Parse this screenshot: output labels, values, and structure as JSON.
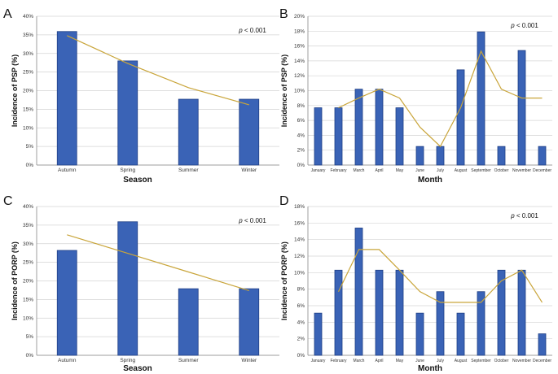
{
  "colors": {
    "bar": "#3a63b6",
    "bar_stroke": "#1f3f86",
    "trend": "#c9a53a",
    "grid": "#d4d4d4",
    "axis": "#888888"
  },
  "chart_data": [
    {
      "panel": "A",
      "type": "bar",
      "categories": [
        "Autumn",
        "Spring",
        "Summer",
        "Winter"
      ],
      "values": [
        35.9,
        28.0,
        17.7,
        17.7
      ],
      "trendline": {
        "type": "linear",
        "values": [
          34.8,
          27.3,
          20.8,
          16.2
        ]
      },
      "ylabel": "Incidence of PSP (%)",
      "xlabel": "Season",
      "ylim": [
        0,
        40
      ],
      "yticks": [
        0,
        5,
        10,
        15,
        20,
        25,
        30,
        35,
        40
      ],
      "ytick_suffix": "%",
      "annotation": "p < 0.001"
    },
    {
      "panel": "B",
      "type": "bar",
      "categories": [
        "January",
        "February",
        "March",
        "April",
        "May",
        "June",
        "July",
        "August",
        "September",
        "October",
        "November",
        "December"
      ],
      "values": [
        7.7,
        7.7,
        10.2,
        10.2,
        7.7,
        2.5,
        2.5,
        12.8,
        17.9,
        2.5,
        15.4,
        2.5
      ],
      "trendline": {
        "type": "moving-average",
        "start_index": 1,
        "values": [
          7.7,
          9.0,
          10.2,
          9.0,
          5.1,
          2.5,
          7.7,
          15.3,
          10.2,
          9.0,
          9.0
        ]
      },
      "ylabel": "Incidence of PSP (%)",
      "xlabel": "Month",
      "ylim": [
        0,
        20
      ],
      "yticks": [
        0,
        2,
        4,
        6,
        8,
        10,
        12,
        14,
        16,
        18,
        20
      ],
      "ytick_suffix": "%",
      "annotation": "p < 0.001"
    },
    {
      "panel": "C",
      "type": "bar",
      "categories": [
        "Autumn",
        "Spring",
        "Summer",
        "Winter"
      ],
      "values": [
        28.2,
        35.9,
        17.9,
        17.9
      ],
      "trendline": {
        "type": "linear",
        "values": [
          32.4,
          27.4,
          22.4,
          17.4
        ]
      },
      "ylabel": "Incidence of PORP (%)",
      "xlabel": "Season",
      "ylim": [
        0,
        40
      ],
      "yticks": [
        0,
        5,
        10,
        15,
        20,
        25,
        30,
        35,
        40
      ],
      "ytick_suffix": "%",
      "annotation": "p < 0.001"
    },
    {
      "panel": "D",
      "type": "bar",
      "categories": [
        "January",
        "February",
        "March",
        "April",
        "May",
        "June",
        "July",
        "August",
        "September",
        "October",
        "November",
        "December"
      ],
      "values": [
        5.1,
        10.3,
        15.4,
        10.3,
        10.3,
        5.1,
        7.7,
        5.1,
        7.7,
        10.3,
        10.3,
        2.6
      ],
      "trendline": {
        "type": "moving-average",
        "start_index": 1,
        "values": [
          7.7,
          12.8,
          12.8,
          10.3,
          7.7,
          6.4,
          6.4,
          6.4,
          9.0,
          10.3,
          6.4
        ]
      },
      "ylabel": "Incidence of PORP (%)",
      "xlabel": "Month",
      "ylim": [
        0,
        18
      ],
      "yticks": [
        0,
        2,
        4,
        6,
        8,
        10,
        12,
        14,
        16,
        18
      ],
      "ytick_suffix": "%",
      "annotation": "p < 0.001"
    }
  ]
}
